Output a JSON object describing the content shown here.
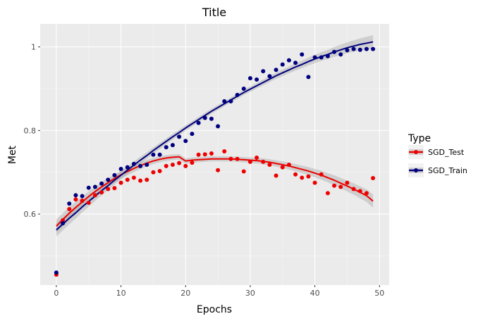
{
  "chart_data": {
    "type": "scatter",
    "title": "Title",
    "xlabel": "Epochs",
    "ylabel": "Met",
    "xlim": [
      -2.5,
      51.5
    ],
    "ylim": [
      0.43,
      1.055
    ],
    "x_ticks": [
      0,
      10,
      20,
      30,
      40,
      50
    ],
    "y_ticks": [
      0.6,
      0.8,
      1.0
    ],
    "y_tick_labels": [
      "0.6",
      "0.8",
      "1"
    ],
    "grid": true,
    "legend": {
      "title": "Type",
      "placement": "right"
    },
    "x": [
      0,
      1,
      2,
      3,
      4,
      5,
      6,
      7,
      8,
      9,
      10,
      11,
      12,
      13,
      14,
      15,
      16,
      17,
      18,
      19,
      20,
      21,
      22,
      23,
      24,
      25,
      26,
      27,
      28,
      29,
      30,
      31,
      32,
      33,
      34,
      35,
      36,
      37,
      38,
      39,
      40,
      41,
      42,
      43,
      44,
      45,
      46,
      47,
      48,
      49
    ],
    "series": [
      {
        "name": "SGD_Test",
        "color": "#ee0000",
        "values": [
          0.455,
          0.585,
          0.612,
          0.635,
          0.632,
          0.627,
          0.645,
          0.652,
          0.66,
          0.662,
          0.675,
          0.682,
          0.687,
          0.68,
          0.682,
          0.7,
          0.703,
          0.715,
          0.718,
          0.722,
          0.715,
          0.723,
          0.742,
          0.743,
          0.745,
          0.705,
          0.75,
          0.732,
          0.732,
          0.702,
          0.725,
          0.735,
          0.725,
          0.718,
          0.692,
          0.712,
          0.718,
          0.695,
          0.687,
          0.69,
          0.675,
          0.695,
          0.65,
          0.668,
          0.665,
          0.675,
          0.66,
          0.655,
          0.65,
          0.686
        ],
        "trend": [
          0.571,
          0.587,
          0.602,
          0.616,
          0.629,
          0.642,
          0.654,
          0.665,
          0.675,
          0.685,
          0.694,
          0.702,
          0.709,
          0.716,
          0.722,
          0.727,
          0.731,
          0.734,
          0.736,
          0.737,
          0.727,
          0.729,
          0.73,
          0.731,
          0.732,
          0.732,
          0.732,
          0.732,
          0.731,
          0.73,
          0.729,
          0.728,
          0.726,
          0.724,
          0.721,
          0.718,
          0.715,
          0.711,
          0.707,
          0.703,
          0.698,
          0.693,
          0.687,
          0.681,
          0.674,
          0.667,
          0.66,
          0.652,
          0.644,
          0.631
        ]
      },
      {
        "name": "SGD_Train",
        "color": "#000080",
        "values": [
          0.46,
          0.578,
          0.625,
          0.645,
          0.643,
          0.663,
          0.665,
          0.673,
          0.682,
          0.693,
          0.708,
          0.712,
          0.72,
          0.715,
          0.718,
          0.742,
          0.742,
          0.76,
          0.765,
          0.785,
          0.775,
          0.792,
          0.818,
          0.83,
          0.828,
          0.81,
          0.87,
          0.87,
          0.885,
          0.9,
          0.925,
          0.922,
          0.942,
          0.93,
          0.945,
          0.958,
          0.968,
          0.962,
          0.982,
          0.928,
          0.975,
          0.975,
          0.978,
          0.988,
          0.982,
          0.992,
          0.995,
          0.993,
          0.995,
          0.995
        ],
        "trend": [
          0.562,
          0.576,
          0.59,
          0.603,
          0.617,
          0.63,
          0.643,
          0.656,
          0.668,
          0.681,
          0.693,
          0.705,
          0.717,
          0.729,
          0.74,
          0.752,
          0.763,
          0.774,
          0.785,
          0.795,
          0.806,
          0.816,
          0.826,
          0.836,
          0.846,
          0.855,
          0.864,
          0.873,
          0.882,
          0.891,
          0.899,
          0.907,
          0.915,
          0.923,
          0.931,
          0.938,
          0.945,
          0.952,
          0.958,
          0.965,
          0.971,
          0.977,
          0.982,
          0.988,
          0.993,
          0.998,
          1.002,
          1.006,
          1.009,
          1.012
        ]
      }
    ]
  }
}
